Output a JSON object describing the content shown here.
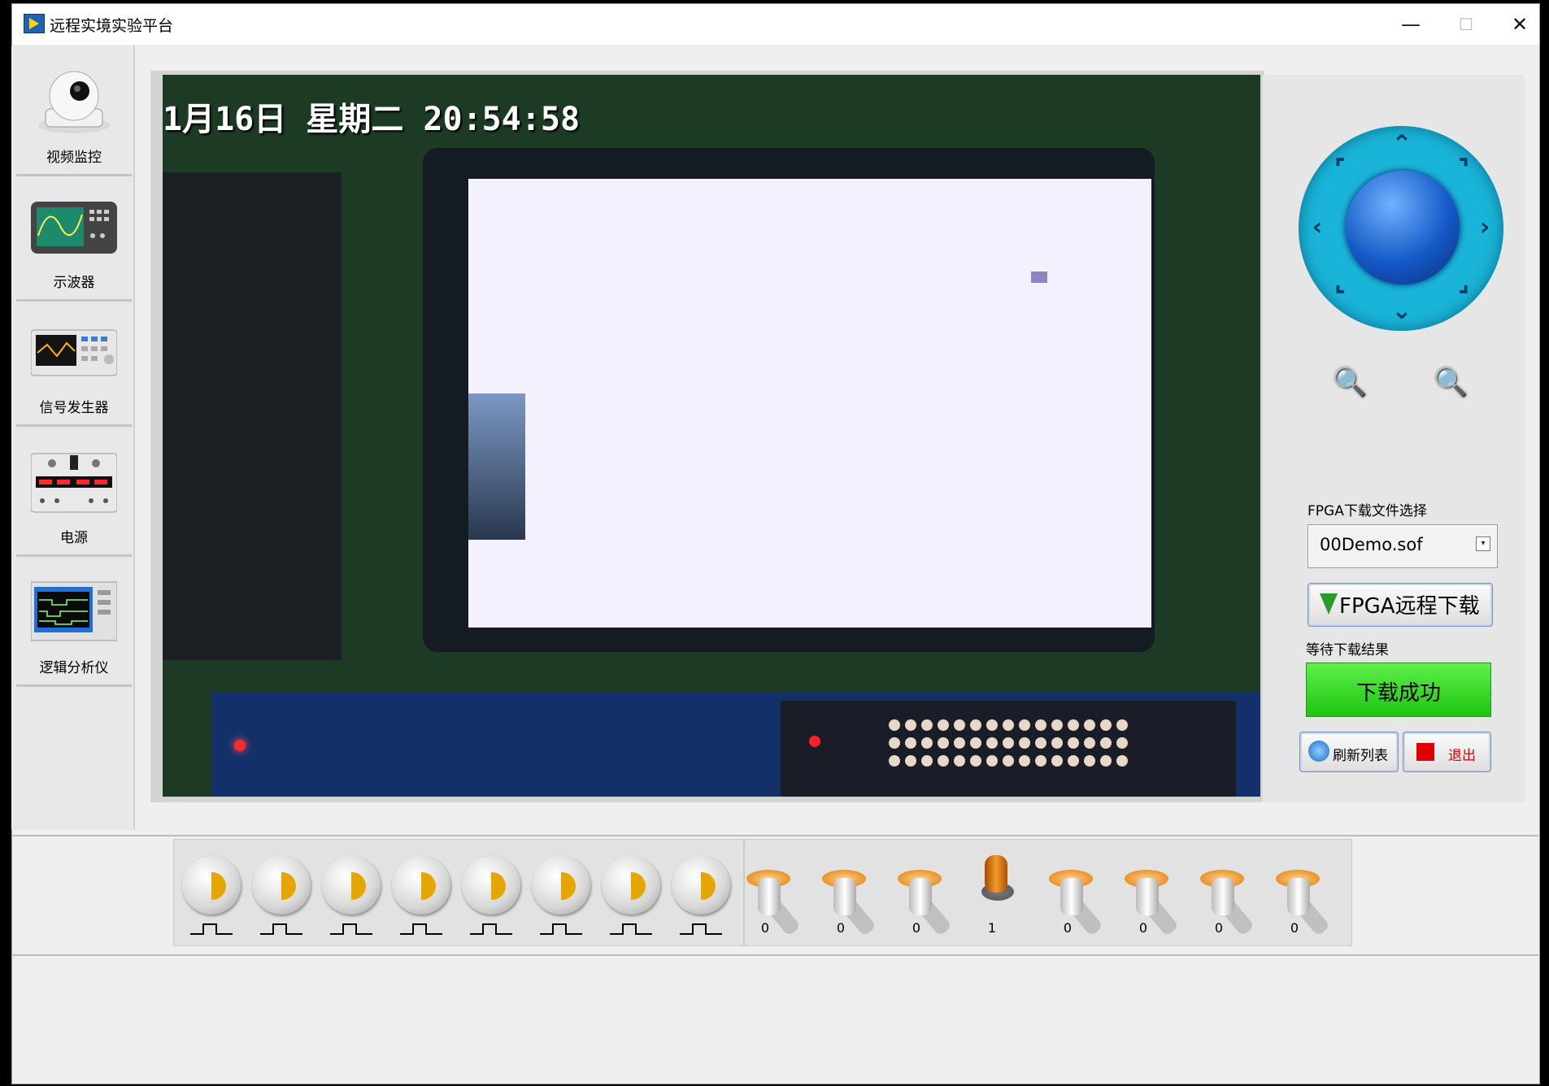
{
  "window": {
    "title": "远程实境实验平台"
  },
  "sidebar": {
    "items": [
      {
        "label": "视频监控",
        "icon": "camera-icon"
      },
      {
        "label": "示波器",
        "icon": "oscilloscope-icon"
      },
      {
        "label": "信号发生器",
        "icon": "signal-generator-icon"
      },
      {
        "label": "电源",
        "icon": "power-supply-icon"
      },
      {
        "label": "逻辑分析仪",
        "icon": "logic-analyzer-icon"
      }
    ]
  },
  "video": {
    "timestamp": "1月16日 星期二 20:54:58"
  },
  "control": {
    "fpga_file_label": "FPGA下载文件选择",
    "fpga_file_value": "00Demo.sof",
    "download_button": "FPGA远程下载",
    "wait_label": "等待下载结果",
    "status": "下载成功",
    "refresh_button": "刷新列表",
    "exit_button": "退出"
  },
  "switches": {
    "values": [
      "0",
      "0",
      "0",
      "1",
      "0",
      "0",
      "0",
      "0"
    ]
  }
}
